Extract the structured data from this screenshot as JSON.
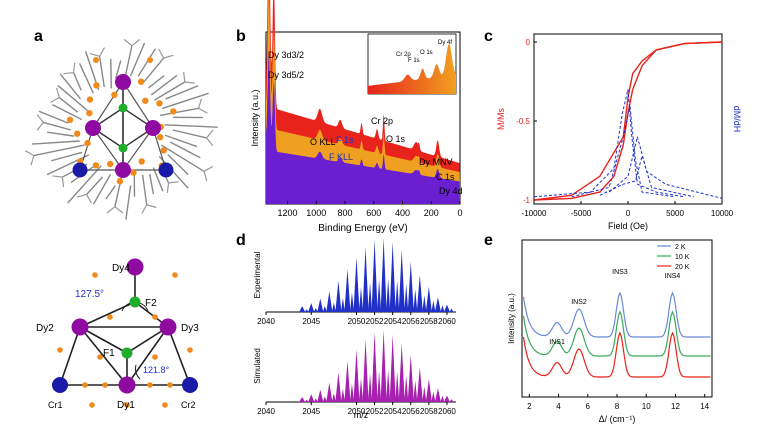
{
  "panels": {
    "a": {
      "label": "a",
      "atoms": {
        "dy4": "Dy4",
        "dy2": "Dy2",
        "dy3": "Dy3",
        "dy1": "Dy1",
        "f2": "F2",
        "f1": "F1",
        "cr1": "Cr1",
        "cr2": "Cr2"
      },
      "angles": {
        "top": "127.5°",
        "bottom": "121.8°"
      },
      "colors": {
        "dy": "#8e0aa0",
        "cr": "#1a1aa8",
        "f": "#1fae2b",
        "o": "#f08a1a",
        "c": "#888888",
        "bond": "#222222",
        "angle": "#2030c8"
      }
    },
    "b": {
      "label": "b",
      "chart_data": {
        "type": "area",
        "xlabel": "Binding Energy (eV)",
        "ylabel": "Intensity (a.u.)",
        "xlim": [
          1350,
          0
        ],
        "xticks": [
          1200,
          1000,
          800,
          600,
          400,
          200,
          0
        ],
        "annotations": [
          {
            "text": "Dy 3d3/2",
            "x": 1330
          },
          {
            "text": "Dy 3d5/2",
            "x": 1295
          },
          {
            "text": "O KLL",
            "x": 975
          },
          {
            "text": "F 1s",
            "x": 685
          },
          {
            "text": "F KLL",
            "x": 833
          },
          {
            "text": "Cr 2p",
            "x": 577
          },
          {
            "text": "O 1s",
            "x": 531
          },
          {
            "text": "Dy MNV",
            "x": 305
          },
          {
            "text": "C 1s",
            "x": 285
          },
          {
            "text": "Dy 4d",
            "x": 155
          }
        ],
        "inset": {
          "peaks": [
            "Cr 2p",
            "F 1s",
            "O 1s",
            "Dy 4f"
          ]
        }
      },
      "colors": {
        "top": "#e8231c",
        "mid": "#f0a020",
        "bottom": "#6a1fd0"
      }
    },
    "c": {
      "label": "c",
      "chart_data": {
        "type": "line",
        "xlabel": "Field (Oe)",
        "ylabel_left": "M/Ms",
        "ylabel_right": "dM/dH",
        "xlim": [
          -10000,
          10000
        ],
        "ylim": [
          -1.0,
          0
        ],
        "xticks": [
          -10000,
          -5000,
          0,
          5000,
          10000
        ],
        "yticks": [
          0,
          -0.5,
          -1.0
        ],
        "series": [
          {
            "x": [
              -10000,
              -6000,
              -3000,
              -1500,
              -500,
              0,
              500,
              1500,
              3000,
              6000,
              10000
            ],
            "y": [
              -1.0,
              -0.97,
              -0.85,
              -0.7,
              -0.6,
              -0.35,
              -0.2,
              -0.12,
              -0.05,
              -0.01,
              0.0
            ]
          },
          {
            "x": [
              -10000,
              -6000,
              -3000,
              -1500,
              -500,
              0,
              500,
              1500,
              3000,
              6000,
              10000
            ],
            "y": [
              -1.0,
              -0.99,
              -0.95,
              -0.85,
              -0.65,
              -0.45,
              -0.3,
              -0.15,
              -0.05,
              -0.01,
              0.0
            ]
          }
        ]
      },
      "colors": {
        "mag": "#e8231c",
        "deriv": "#2030c8"
      }
    },
    "d": {
      "label": "d",
      "chart_data": {
        "type": "bar",
        "xlabel": "m/z",
        "xlim": [
          2040,
          2061
        ],
        "xticks": [
          2040,
          2045,
          2050,
          2052,
          2054,
          2056,
          2058,
          2060
        ],
        "tick_labels": [
          "2040",
          "2045",
          "2050",
          "2052",
          "2054",
          "2056",
          "2058",
          "2060"
        ],
        "series": [
          {
            "name": "Experimental",
            "x": [
              2044,
              2045,
              2046,
              2047,
              2048,
              2049,
              2050,
              2051,
              2052,
              2053,
              2054,
              2055,
              2056,
              2057,
              2058,
              2059,
              2060
            ],
            "values": [
              0.08,
              0.12,
              0.18,
              0.28,
              0.42,
              0.58,
              0.74,
              0.88,
              0.98,
              1.0,
              0.95,
              0.84,
              0.68,
              0.5,
              0.34,
              0.2,
              0.1
            ]
          },
          {
            "name": "Simulated",
            "x": [
              2044,
              2045,
              2046,
              2047,
              2048,
              2049,
              2050,
              2051,
              2052,
              2053,
              2054,
              2055,
              2056,
              2057,
              2058,
              2059,
              2060
            ],
            "values": [
              0.07,
              0.11,
              0.17,
              0.27,
              0.41,
              0.57,
              0.73,
              0.87,
              0.97,
              1.0,
              0.94,
              0.82,
              0.66,
              0.48,
              0.32,
              0.19,
              0.09
            ]
          }
        ]
      },
      "colors": {
        "exp": "#2030c8",
        "sim": "#a820b0"
      }
    },
    "e": {
      "label": "e",
      "chart_data": {
        "type": "line",
        "xlabel": "Δ/ (cm⁻¹)",
        "ylabel": "Intensity (a.u.)",
        "xlim": [
          1.5,
          14.5
        ],
        "xticks": [
          2,
          4,
          6,
          8,
          10,
          12,
          14
        ],
        "legend": [
          "2 K",
          "10 K",
          "20 K"
        ],
        "legend_position": "top-right",
        "peak_labels": [
          {
            "text": "INS1",
            "x": 3.9
          },
          {
            "text": "INS2",
            "x": 5.4
          },
          {
            "text": "INS3",
            "x": 8.2
          },
          {
            "text": "INS4",
            "x": 11.8
          }
        ]
      },
      "colors": {
        "s2": "#6a8ad8",
        "s10": "#3aaa5a",
        "s20": "#e8231c"
      }
    }
  }
}
